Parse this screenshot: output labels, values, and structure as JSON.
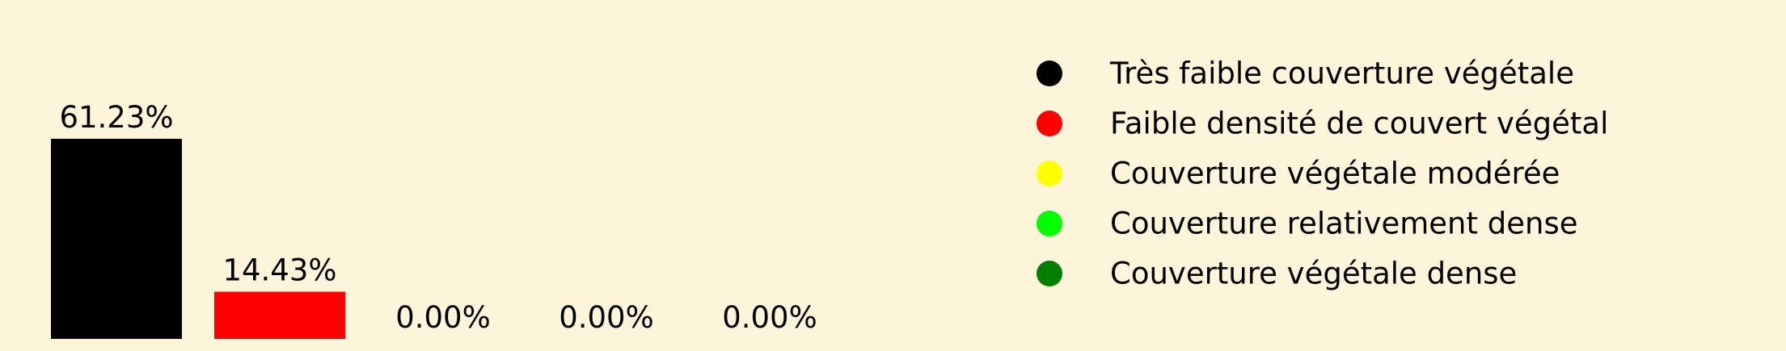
{
  "chart_data": {
    "type": "bar",
    "title": "",
    "xlabel": "",
    "ylabel": "",
    "categories": [
      "Très faible couverture végétale",
      "Faible densité de couvert végétal",
      "Couverture végétale modérée",
      "Couverture relativement dense",
      "Couverture végétale dense"
    ],
    "values": [
      61.23,
      14.43,
      0.0,
      0.0,
      0.0
    ],
    "value_labels": [
      "61.23%",
      "14.43%",
      "0.00%",
      "0.00%",
      "0.00%"
    ],
    "colors": [
      "#000000",
      "#ff0000",
      "#ffff00",
      "#00ff00",
      "#008000"
    ],
    "ylim": [
      0,
      100
    ],
    "grid": false,
    "axes_visible": false,
    "legend_position": "right",
    "legend": [
      {
        "label": "Très faible couverture végétale",
        "color": "#000000"
      },
      {
        "label": "Faible densité de couvert végétal",
        "color": "#ff0000"
      },
      {
        "label": "Couverture végétale modérée",
        "color": "#ffff00"
      },
      {
        "label": "Couverture relativement dense",
        "color": "#00ff00"
      },
      {
        "label": "Couverture végétale dense",
        "color": "#008000"
      }
    ]
  },
  "background_color": "#fdf5da"
}
